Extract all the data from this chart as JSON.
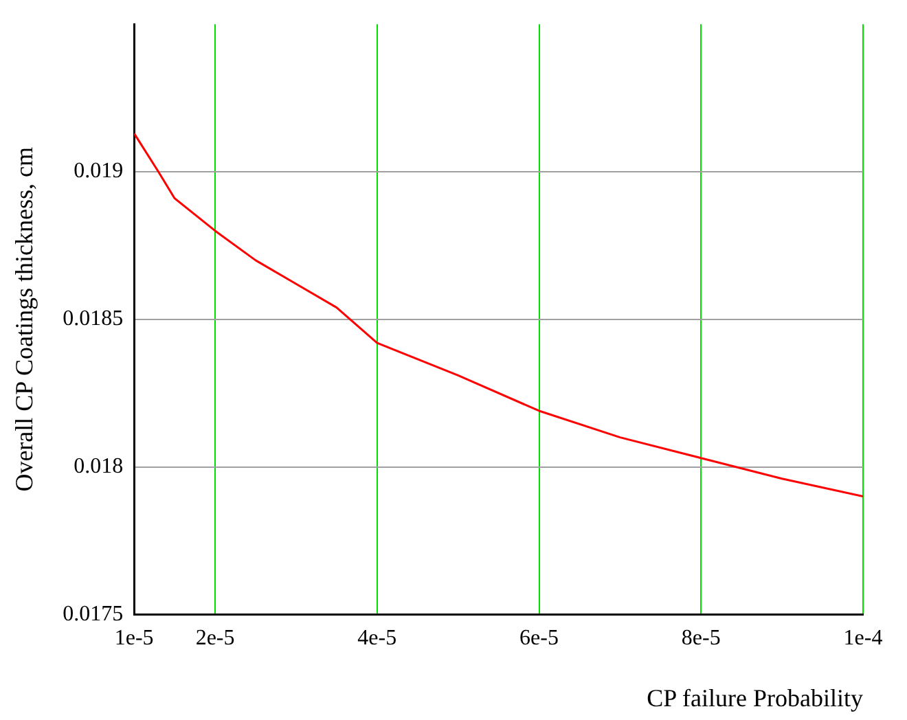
{
  "chart_data": {
    "type": "line",
    "xlabel": "CP failure Probability",
    "ylabel": "Overall CP Coatings thickness, cm",
    "x": [
      1e-05,
      1.3e-05,
      1.5e-05,
      2e-05,
      2.5e-05,
      3e-05,
      3.5e-05,
      4e-05,
      5e-05,
      6e-05,
      7e-05,
      8e-05,
      9e-05,
      0.0001
    ],
    "series": [
      {
        "color": "#ff0000",
        "values": [
          0.01913,
          0.019,
          0.01891,
          0.0188,
          0.0187,
          0.01862,
          0.01854,
          0.01842,
          0.01831,
          0.01819,
          0.0181,
          0.01803,
          0.01796,
          0.0179
        ]
      }
    ],
    "xlim": [
      1e-05,
      0.0001
    ],
    "xticks": [
      {
        "value": 1e-05,
        "label": "1e-5"
      },
      {
        "value": 2e-05,
        "label": "2e-5"
      },
      {
        "value": 4e-05,
        "label": "4e-5"
      },
      {
        "value": 6e-05,
        "label": "6e-5"
      },
      {
        "value": 8e-05,
        "label": "8e-5"
      },
      {
        "value": 0.0001,
        "label": "1e-4"
      }
    ],
    "ylim": [
      0.0175,
      0.0195
    ],
    "yticks": [
      0.0175,
      0.018,
      0.0185,
      0.019
    ],
    "grid": true,
    "legend": false,
    "marker": "none",
    "line_style": "solid"
  }
}
